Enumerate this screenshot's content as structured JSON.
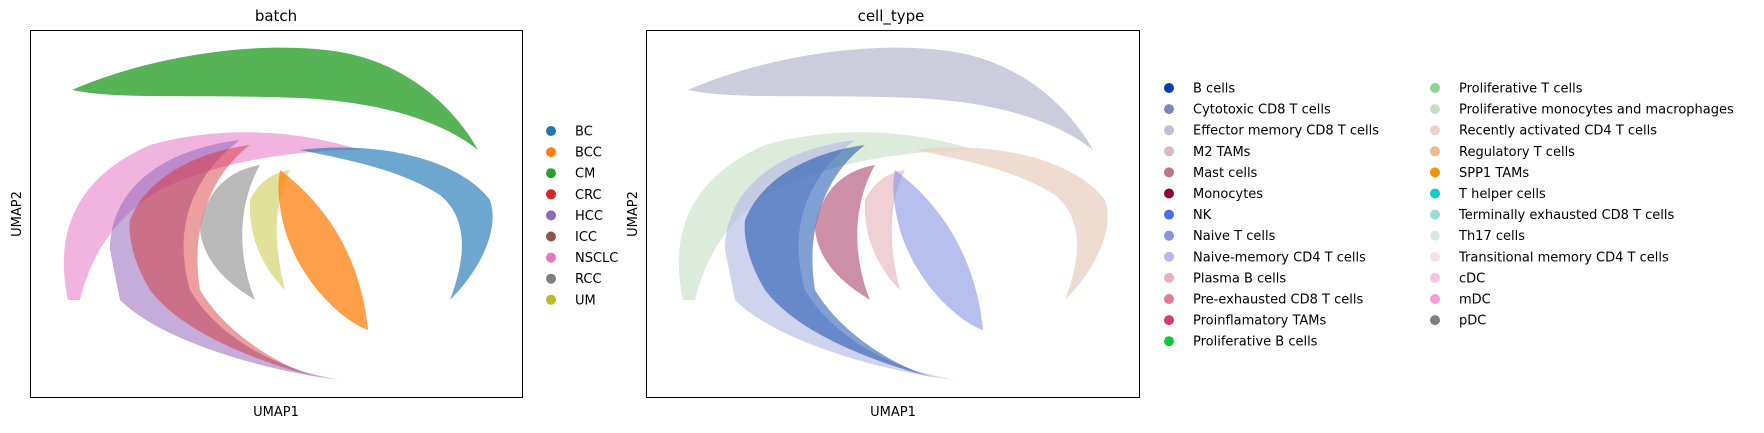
{
  "chart_data": [
    {
      "type": "scatter",
      "title": "batch",
      "xlabel": "UMAP1",
      "ylabel": "UMAP2",
      "grid": false,
      "legend_placement": "right",
      "legend": [
        {
          "label": "BC",
          "color": "#1f77b4"
        },
        {
          "label": "BCC",
          "color": "#ff7f0e"
        },
        {
          "label": "CM",
          "color": "#2ca02c"
        },
        {
          "label": "CRC",
          "color": "#d62728"
        },
        {
          "label": "HCC",
          "color": "#9467bd"
        },
        {
          "label": "ICC",
          "color": "#8c564b"
        },
        {
          "label": "NSCLC",
          "color": "#e377c2"
        },
        {
          "label": "RCC",
          "color": "#7f7f7f"
        },
        {
          "label": "UM",
          "color": "#bcbd22"
        }
      ]
    },
    {
      "type": "scatter",
      "title": "cell_type",
      "xlabel": "UMAP1",
      "ylabel": "UMAP2",
      "grid": false,
      "legend_placement": "right",
      "legend": [
        {
          "label": "B cells",
          "color": "#023fa5"
        },
        {
          "label": "Cytotoxic CD8 T cells",
          "color": "#7d87b9"
        },
        {
          "label": "Effector memory CD8 T cells",
          "color": "#bec1d4"
        },
        {
          "label": "M2 TAMs",
          "color": "#d6bcc0"
        },
        {
          "label": "Mast cells",
          "color": "#bb7784"
        },
        {
          "label": "Monocytes",
          "color": "#8e063b"
        },
        {
          "label": "NK",
          "color": "#4a6fe3"
        },
        {
          "label": "Naive T cells",
          "color": "#8595e1"
        },
        {
          "label": "Naive-memory CD4 T cells",
          "color": "#b5bbe3"
        },
        {
          "label": "Plasma B cells",
          "color": "#e6afb9"
        },
        {
          "label": "Pre-exhausted CD8 T cells",
          "color": "#e07b91"
        },
        {
          "label": "Proinflamatory TAMs",
          "color": "#d33f6a"
        },
        {
          "label": "Proliferative B cells",
          "color": "#11c638"
        },
        {
          "label": "Proliferative T cells",
          "color": "#8dd593"
        },
        {
          "label": "Proliferative monocytes and macrophages",
          "color": "#c6dec7"
        },
        {
          "label": "Recently activated CD4 T cells",
          "color": "#ead3c6"
        },
        {
          "label": "Regulatory T cells",
          "color": "#f0b98d"
        },
        {
          "label": "SPP1 TAMs",
          "color": "#ef9708"
        },
        {
          "label": "T helper cells",
          "color": "#0fcfc0"
        },
        {
          "label": "Terminally exhausted CD8 T cells",
          "color": "#9cded6"
        },
        {
          "label": "Th17 cells",
          "color": "#d5eae7"
        },
        {
          "label": "Transitional memory CD4 T cells",
          "color": "#f3e1eb"
        },
        {
          "label": "cDC",
          "color": "#f6c4e1"
        },
        {
          "label": "mDC",
          "color": "#f79cd4"
        },
        {
          "label": "pDC",
          "color": "#7f7f7f"
        }
      ]
    }
  ]
}
